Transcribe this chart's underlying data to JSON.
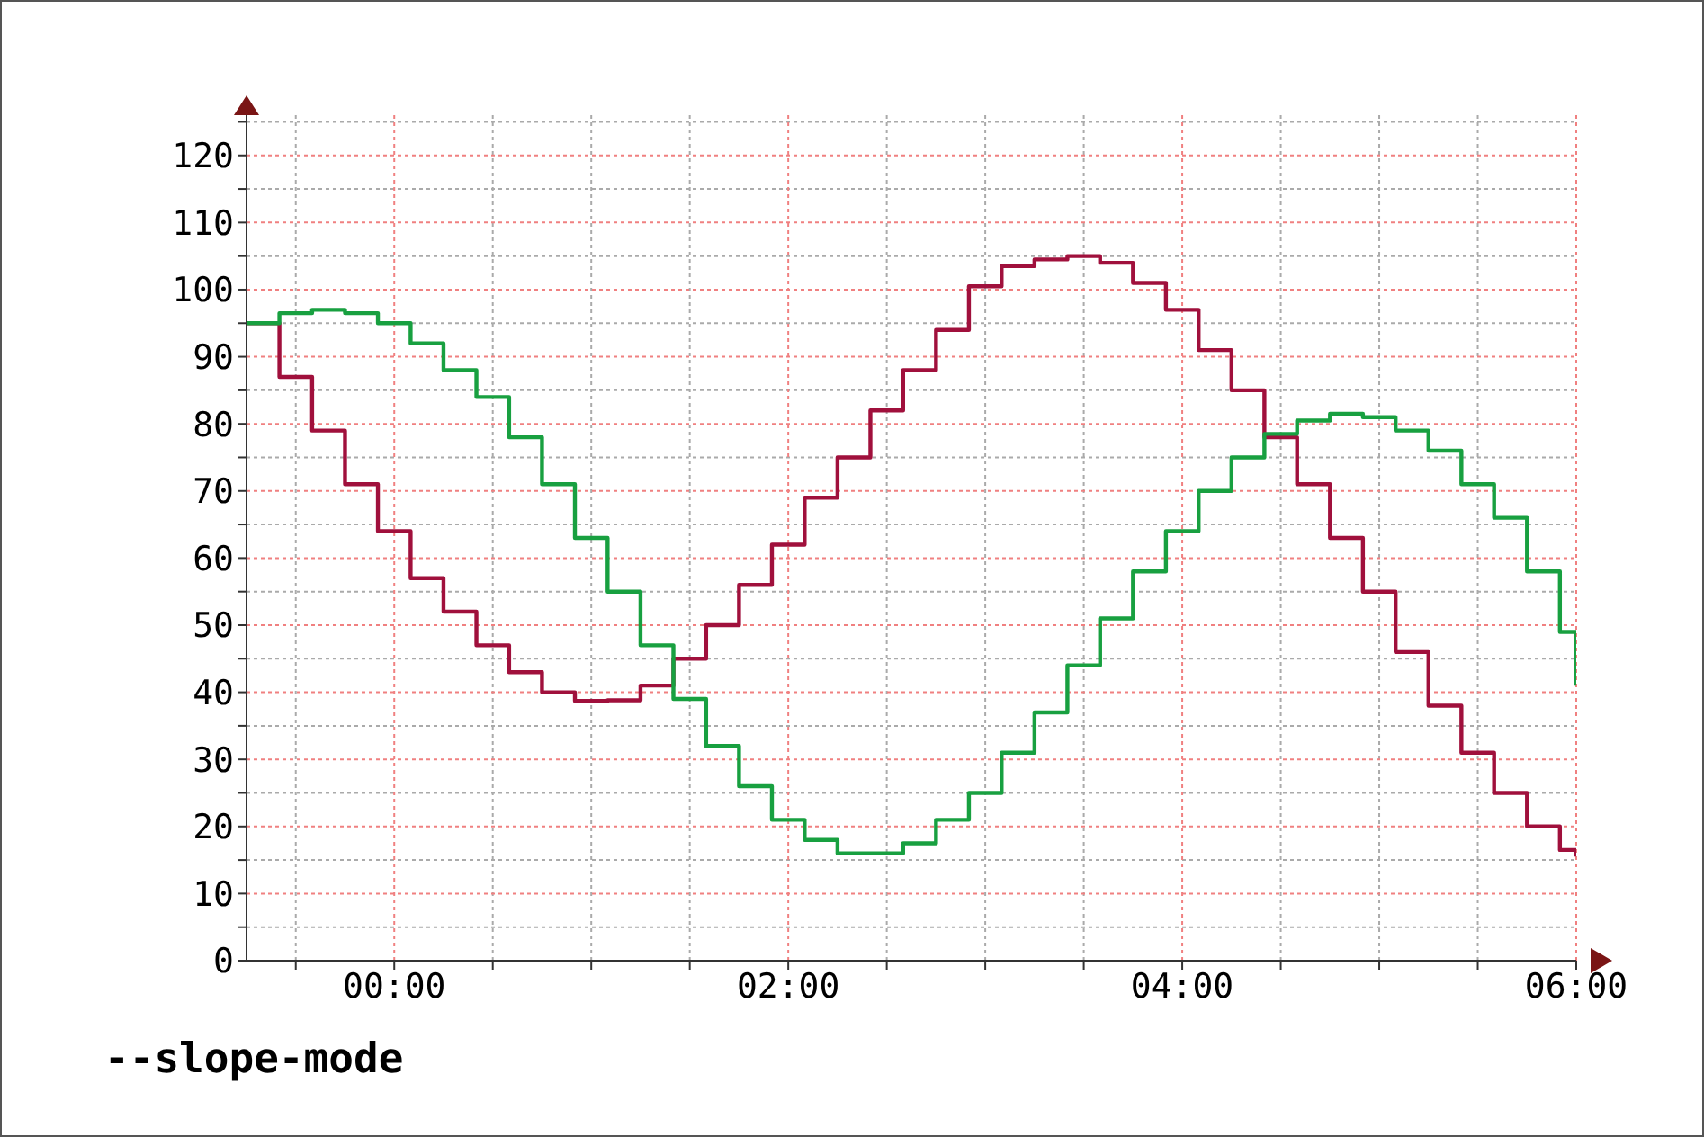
{
  "chart_data": {
    "type": "step",
    "annotations": [
      "--slope-mode"
    ],
    "x": [
      -0.75,
      -0.583,
      -0.417,
      -0.25,
      -0.083,
      0.083,
      0.25,
      0.417,
      0.583,
      0.75,
      0.917,
      1.083,
      1.25,
      1.417,
      1.583,
      1.75,
      1.917,
      2.083,
      2.25,
      2.417,
      2.583,
      2.75,
      2.917,
      3.083,
      3.25,
      3.417,
      3.583,
      3.75,
      3.917,
      4.083,
      4.25,
      4.417,
      4.583,
      4.75,
      4.917,
      5.083,
      5.25,
      5.417,
      5.583,
      5.75,
      5.917,
      6.0
    ],
    "series": [
      {
        "color": "#a0103c",
        "values": [
          95,
          87,
          79,
          71,
          64,
          57,
          52,
          47,
          43,
          40,
          38.7,
          38.8,
          41,
          45,
          50,
          56,
          62,
          69,
          75,
          82,
          88,
          94,
          100.5,
          103.5,
          104.5,
          105,
          104,
          101,
          97,
          91,
          85,
          78,
          71,
          63,
          55,
          46,
          38,
          31,
          25,
          20,
          16.5,
          15.5
        ]
      },
      {
        "color": "#18a040",
        "values": [
          95,
          96.5,
          97,
          96.5,
          95,
          92,
          88,
          84,
          78,
          71,
          63,
          55,
          47,
          39,
          32,
          26,
          21,
          18,
          16,
          16,
          17.5,
          21,
          25,
          31,
          37,
          44,
          51,
          58,
          64,
          70,
          75,
          78.5,
          80.5,
          81.5,
          81,
          79,
          76,
          71,
          66,
          58,
          49,
          41
        ]
      }
    ],
    "xlim": [
      -0.75,
      6.0
    ],
    "xticks": [
      {
        "value": -0.5,
        "label": null
      },
      {
        "value": 0,
        "label": "00:00"
      },
      {
        "value": 0.5,
        "label": null
      },
      {
        "value": 1,
        "label": null
      },
      {
        "value": 1.5,
        "label": null
      },
      {
        "value": 2,
        "label": "02:00"
      },
      {
        "value": 2.5,
        "label": null
      },
      {
        "value": 3,
        "label": null
      },
      {
        "value": 3.5,
        "label": null
      },
      {
        "value": 4,
        "label": "04:00"
      },
      {
        "value": 4.5,
        "label": null
      },
      {
        "value": 5,
        "label": null
      },
      {
        "value": 5.5,
        "label": null
      },
      {
        "value": 6,
        "label": "06:00"
      }
    ],
    "ylim": [
      0,
      126
    ],
    "yticks": [
      0,
      {
        "value": 5,
        "label": null
      },
      10,
      {
        "value": 15,
        "label": null
      },
      20,
      {
        "value": 25,
        "label": null
      },
      30,
      {
        "value": 35,
        "label": null
      },
      40,
      {
        "value": 45,
        "label": null
      },
      50,
      {
        "value": 55,
        "label": null
      },
      60,
      {
        "value": 65,
        "label": null
      },
      70,
      {
        "value": 75,
        "label": null
      },
      80,
      {
        "value": 85,
        "label": null
      },
      90,
      {
        "value": 95,
        "label": null
      },
      100,
      {
        "value": 105,
        "label": null
      },
      110,
      {
        "value": 115,
        "label": null
      },
      120,
      {
        "value": 125,
        "label": null
      }
    ],
    "grid": true,
    "marker": "none",
    "line_style": "solid"
  }
}
